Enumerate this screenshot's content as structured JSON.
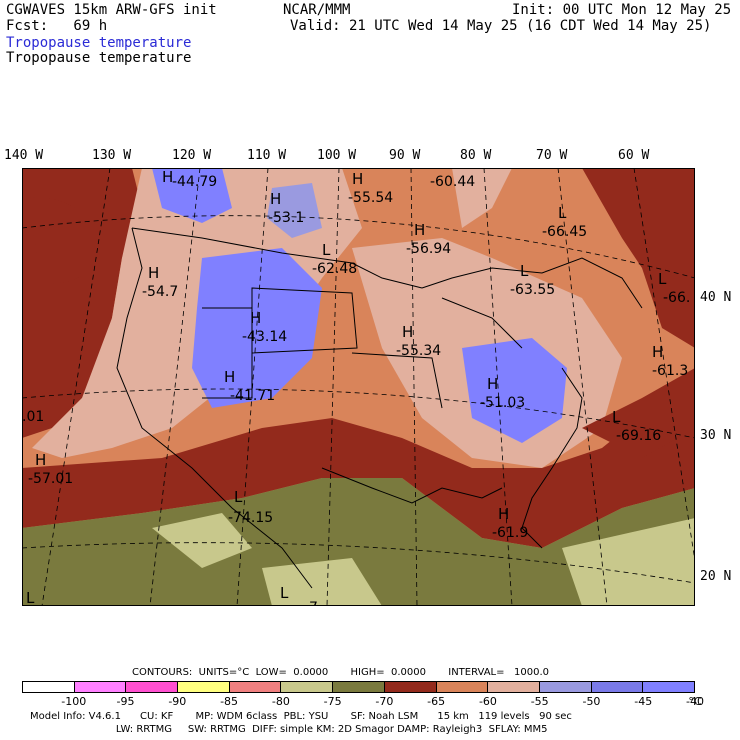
{
  "header": {
    "model": "CGWAVES 15km ARW-GFS init",
    "fcst": "Fcst:   69 h",
    "center": "NCAR/MMM",
    "init": "Init: 00 UTC Mon 12 May 25",
    "valid": "Valid: 21 UTC Wed 14 May 25 (16 CDT Wed 14 May 25)",
    "field_title_blue": "Tropopause temperature",
    "field_title_black": "Tropopause temperature"
  },
  "longitude_labels": [
    "140 W",
    "130 W",
    "120 W",
    "110 W",
    "100 W",
    "90 W",
    "80 W",
    "70 W",
    "60 W"
  ],
  "latitude_labels": [
    "40 N",
    "30 N",
    "20 N"
  ],
  "map_labels": [
    {
      "letter": "H",
      "value": "-44.79"
    },
    {
      "letter": "H",
      "value": "-55.54"
    },
    {
      "letter": "",
      "value": "-60.44"
    },
    {
      "letter": "H",
      "value": "-53.1"
    },
    {
      "letter": "L",
      "value": "-66.45"
    },
    {
      "letter": "L",
      "value": "-62.48"
    },
    {
      "letter": "H",
      "value": "-56.94"
    },
    {
      "letter": "H",
      "value": "-54.7"
    },
    {
      "letter": "L",
      "value": "-63.55"
    },
    {
      "letter": "L",
      "value": "-66."
    },
    {
      "letter": "H",
      "value": "-43.14"
    },
    {
      "letter": "H",
      "value": "-55.34"
    },
    {
      "letter": "H",
      "value": "-61.3"
    },
    {
      "letter": "H",
      "value": "-41.71"
    },
    {
      "letter": "H",
      "value": "-51.03"
    },
    {
      "letter": "",
      "value": ".01"
    },
    {
      "letter": "L",
      "value": "-69.16"
    },
    {
      "letter": "H",
      "value": "-57.01"
    },
    {
      "letter": "L",
      "value": "-74.15"
    },
    {
      "letter": "H",
      "value": "-61.9"
    },
    {
      "letter": "L",
      "value": ""
    },
    {
      "letter": "L",
      "value": "-7"
    }
  ],
  "contours": {
    "line": "CONTOURS:  UNITS=°C  LOW=  0.0000       HIGH=  0.0000       INTERVAL=   1000.0"
  },
  "colorbar": {
    "colors": [
      "#ffffff",
      "#ff80ff",
      "#ff50d0",
      "#ffff80",
      "#f08080",
      "#c8c88c",
      "#7a7a3e",
      "#932a1c",
      "#d9845a",
      "#e2b09e",
      "#9a9ae0",
      "#7a7ae8",
      "#8080ff"
    ],
    "ticks": [
      "-100",
      "-95",
      "-90",
      "-85",
      "-80",
      "-75",
      "-70",
      "-65",
      "-60",
      "-55",
      "-50",
      "-45",
      "-40",
      "°C"
    ]
  },
  "footer": {
    "line1": "Model Info: V4.6.1      CU: KF       MP: WDM 6class  PBL: YSU       SF: Noah LSM      15 km   119 levels   90 sec",
    "line2": "                           LW: RRTMG     SW: RRTMG  DIFF: simple KM: 2D Smagor DAMP: Rayleigh3  SFLAY: MM5"
  }
}
